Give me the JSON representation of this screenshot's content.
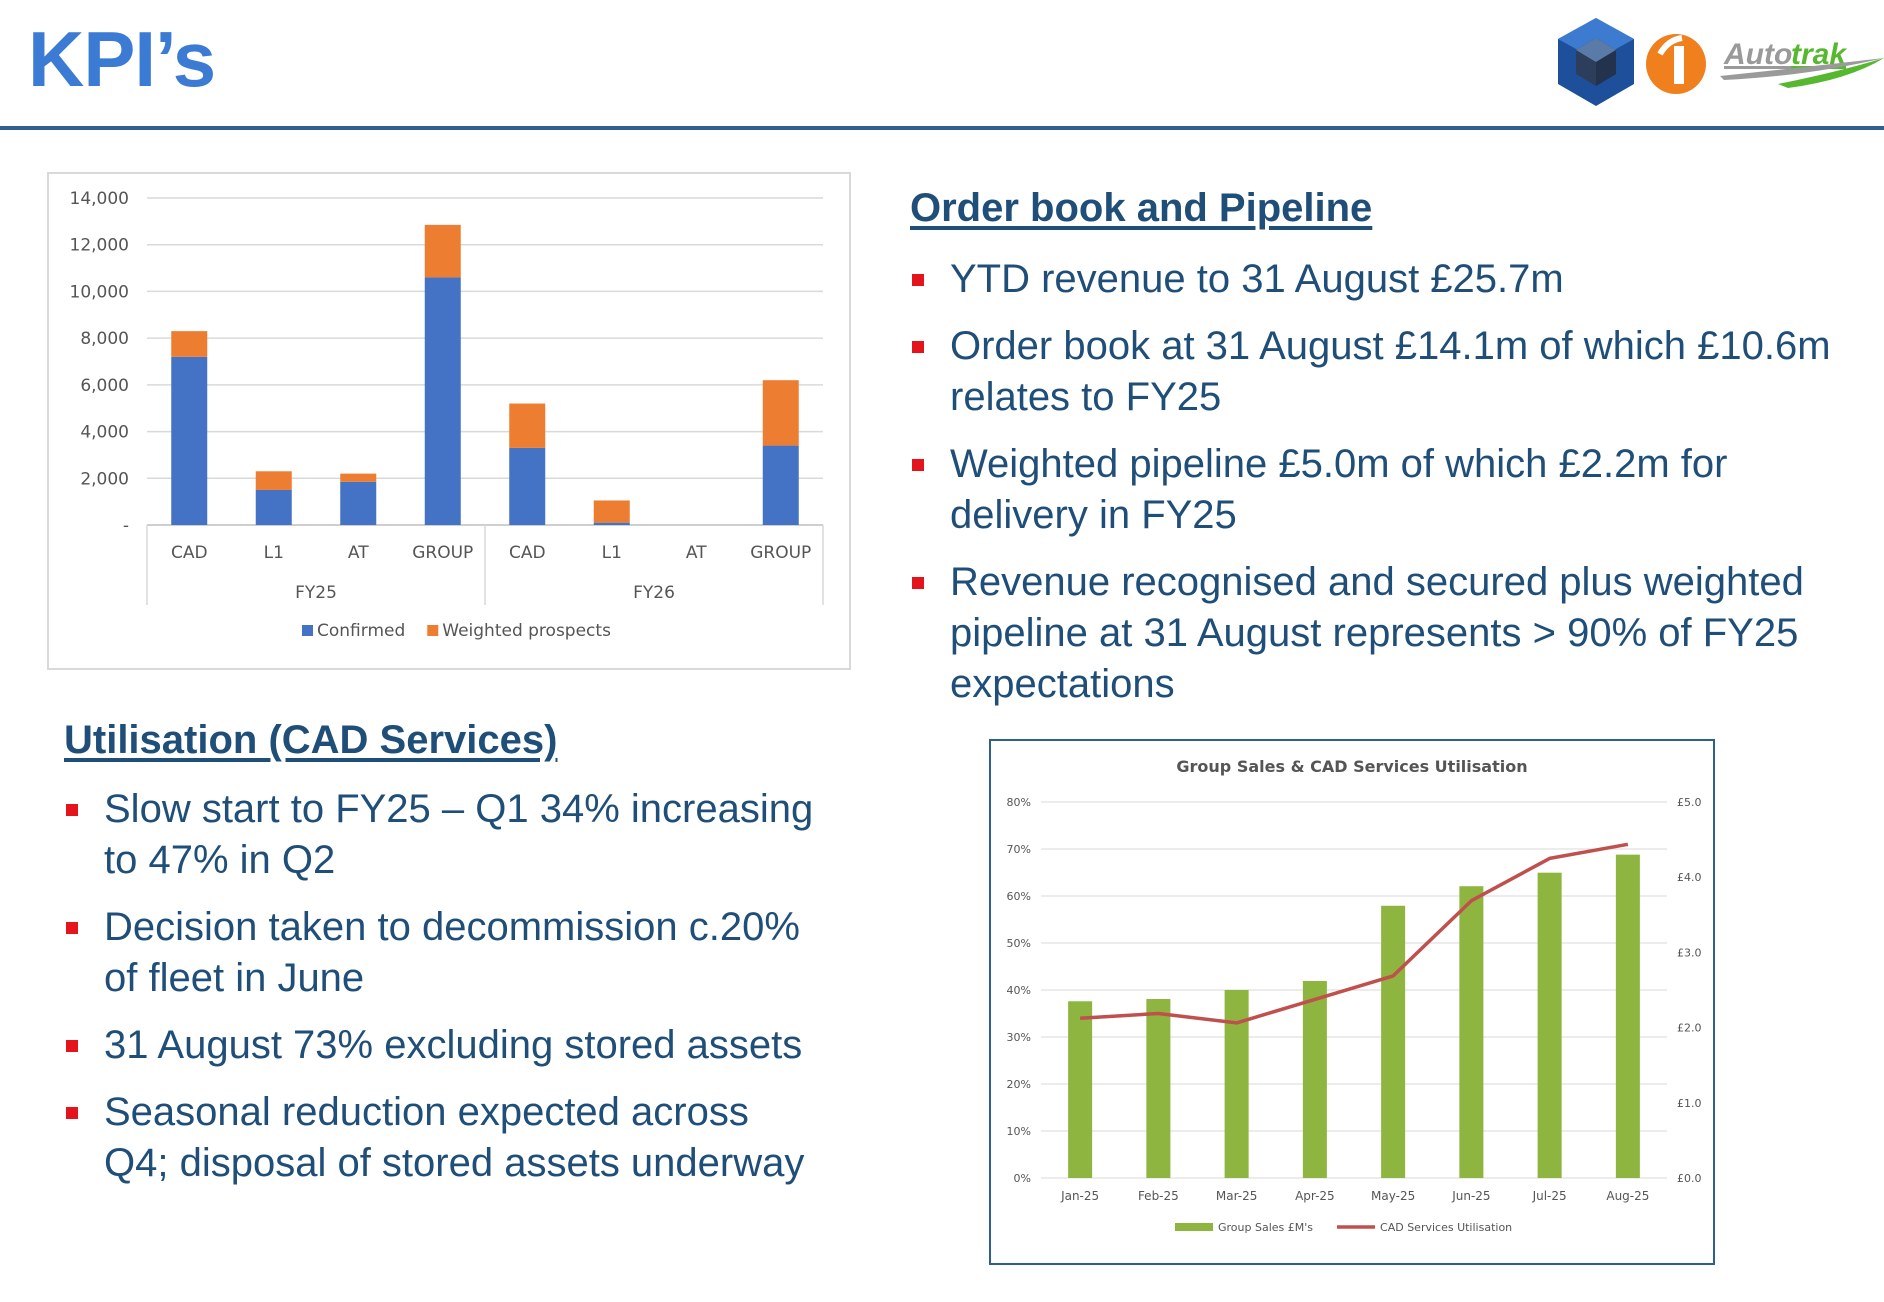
{
  "page": {
    "title": "KPI’s",
    "logos": [
      {
        "name": "cube-logo",
        "color": "#1e4f9a"
      },
      {
        "name": "l1-logo",
        "text": "1",
        "color": "#f07f1e"
      },
      {
        "name": "autotrak-logo",
        "text_a": "Auto",
        "text_b": "trak",
        "colors": [
          "#9a9a9a",
          "#55b82e"
        ]
      }
    ]
  },
  "order_book": {
    "heading": "Order book and Pipeline",
    "bullets": [
      "YTD revenue to 31 August £25.7m",
      "Order book at 31 August £14.1m of which £10.6m relates to FY25",
      "Weighted pipeline £5.0m of which £2.2m for delivery in FY25",
      "Revenue recognised and secured plus weighted pipeline at 31 August represents > 90% of FY25 expectations"
    ]
  },
  "utilisation": {
    "heading": "Utilisation (CAD Services)",
    "bullets": [
      "Slow start to FY25 – Q1 34% increasing to 47% in Q2",
      "Decision taken to decommission c.20% of fleet in June",
      "31 August 73% excluding stored assets",
      "Seasonal reduction expected across Q4; disposal of stored assets underway"
    ]
  },
  "colors": {
    "title": "#3b7bd4",
    "text": "#1f4e79",
    "bullet": "#e3141b",
    "confirmed": "#4472c4",
    "weighted": "#ed7d31",
    "sales": "#8db53f",
    "utilisation": "#c0504d"
  },
  "chart_data": [
    {
      "type": "bar",
      "stacked": true,
      "categories": [
        "CAD",
        "L1",
        "AT",
        "GROUP",
        "CAD",
        "L1",
        "AT",
        "GROUP"
      ],
      "groups": [
        {
          "label": "FY25",
          "categories": [
            "CAD",
            "L1",
            "AT",
            "GROUP"
          ]
        },
        {
          "label": "FY26",
          "categories": [
            "CAD",
            "L1",
            "AT",
            "GROUP"
          ]
        }
      ],
      "series": [
        {
          "name": "Confirmed",
          "values": [
            7200,
            1500,
            1850,
            10600,
            3300,
            100,
            0,
            3400
          ]
        },
        {
          "name": "Weighted prospects",
          "values": [
            1100,
            800,
            350,
            2250,
            1900,
            950,
            0,
            2800
          ]
        }
      ],
      "ylim": [
        0,
        14000
      ],
      "yticks": [
        "-",
        "2,000",
        "4,000",
        "6,000",
        "8,000",
        "10,000",
        "12,000",
        "14,000"
      ],
      "legend": "bottom",
      "grid": true
    },
    {
      "type": "bar+line",
      "title": "Group Sales & CAD Services Utilisation",
      "categories": [
        "Jan-25",
        "Feb-25",
        "Mar-25",
        "Apr-25",
        "May-25",
        "Jun-25",
        "Jul-25",
        "Aug-25"
      ],
      "series": [
        {
          "name": "Group Sales £M's",
          "type": "bar",
          "axis": "right",
          "values": [
            2.35,
            2.38,
            2.5,
            2.62,
            3.62,
            3.88,
            4.06,
            4.3
          ]
        },
        {
          "name": "CAD Services Utilisation",
          "type": "line",
          "axis": "left",
          "values": [
            34,
            35,
            33,
            38,
            43,
            59,
            68,
            71
          ]
        }
      ],
      "y_left": {
        "range": [
          0,
          80
        ],
        "ticks": [
          "0%",
          "10%",
          "20%",
          "30%",
          "40%",
          "50%",
          "60%",
          "70%",
          "80%"
        ]
      },
      "y_right": {
        "range": [
          0,
          5
        ],
        "ticks": [
          "£0.0",
          "£1.0",
          "£2.0",
          "£3.0",
          "£4.0",
          "£5.0"
        ]
      },
      "legend": "bottom",
      "grid": true
    }
  ]
}
